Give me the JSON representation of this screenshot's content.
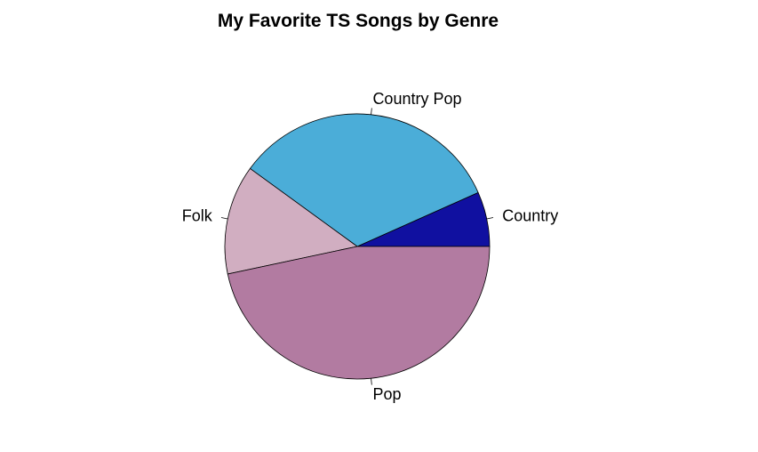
{
  "chart_data": {
    "type": "pie",
    "title": "My Favorite TS Songs by Genre",
    "slices": [
      {
        "label": "Country",
        "value": 1,
        "color": "#1010A0"
      },
      {
        "label": "Country Pop",
        "value": 5,
        "color": "#4BADD8"
      },
      {
        "label": "Folk",
        "value": 2,
        "color": "#D1AEC1"
      },
      {
        "label": "Pop",
        "value": 7,
        "color": "#B27BA1"
      }
    ],
    "start_angle_deg": 0,
    "direction": "counterclockwise",
    "legend": "none"
  }
}
